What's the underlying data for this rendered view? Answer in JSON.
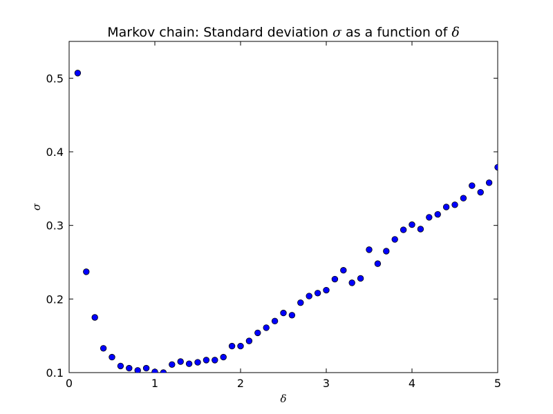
{
  "chart_data": {
    "type": "scatter",
    "title_prefix": "Markov chain: Standard deviation ",
    "title_sym1": "σ",
    "title_middle": " as a function of ",
    "title_sym2": "δ",
    "xlabel": "δ",
    "ylabel": "σ",
    "xlim": [
      0,
      5
    ],
    "ylim": [
      0.1,
      0.55
    ],
    "xticks": [
      0,
      1,
      2,
      3,
      4,
      5
    ],
    "xtick_labels": [
      "0",
      "1",
      "2",
      "3",
      "4",
      "5"
    ],
    "yticks": [
      0.1,
      0.2,
      0.3,
      0.4,
      0.5
    ],
    "ytick_labels": [
      "0.1",
      "0.2",
      "0.3",
      "0.4",
      "0.5"
    ],
    "grid": false,
    "marker_color": "#0000ff",
    "marker_edge": "#000000",
    "x": [
      0.1,
      0.2,
      0.3,
      0.4,
      0.5,
      0.6,
      0.7,
      0.8,
      0.9,
      1.0,
      1.1,
      1.2,
      1.3,
      1.4,
      1.5,
      1.6,
      1.7,
      1.8,
      1.9,
      2.0,
      2.1,
      2.2,
      2.3,
      2.4,
      2.5,
      2.6,
      2.7,
      2.8,
      2.9,
      3.0,
      3.1,
      3.2,
      3.3,
      3.4,
      3.5,
      3.6,
      3.7,
      3.8,
      3.9,
      4.0,
      4.1,
      4.2,
      4.3,
      4.4,
      4.5,
      4.6,
      4.7,
      4.8,
      4.9,
      5.0
    ],
    "y": [
      0.507,
      0.237,
      0.175,
      0.133,
      0.121,
      0.109,
      0.106,
      0.103,
      0.106,
      0.101,
      0.1,
      0.111,
      0.115,
      0.112,
      0.114,
      0.117,
      0.117,
      0.121,
      0.136,
      0.136,
      0.143,
      0.154,
      0.161,
      0.17,
      0.181,
      0.178,
      0.195,
      0.204,
      0.208,
      0.212,
      0.227,
      0.239,
      0.222,
      0.228,
      0.267,
      0.248,
      0.265,
      0.281,
      0.294,
      0.301,
      0.295,
      0.311,
      0.315,
      0.325,
      0.328,
      0.337,
      0.354,
      0.345,
      0.358,
      0.379
    ]
  }
}
